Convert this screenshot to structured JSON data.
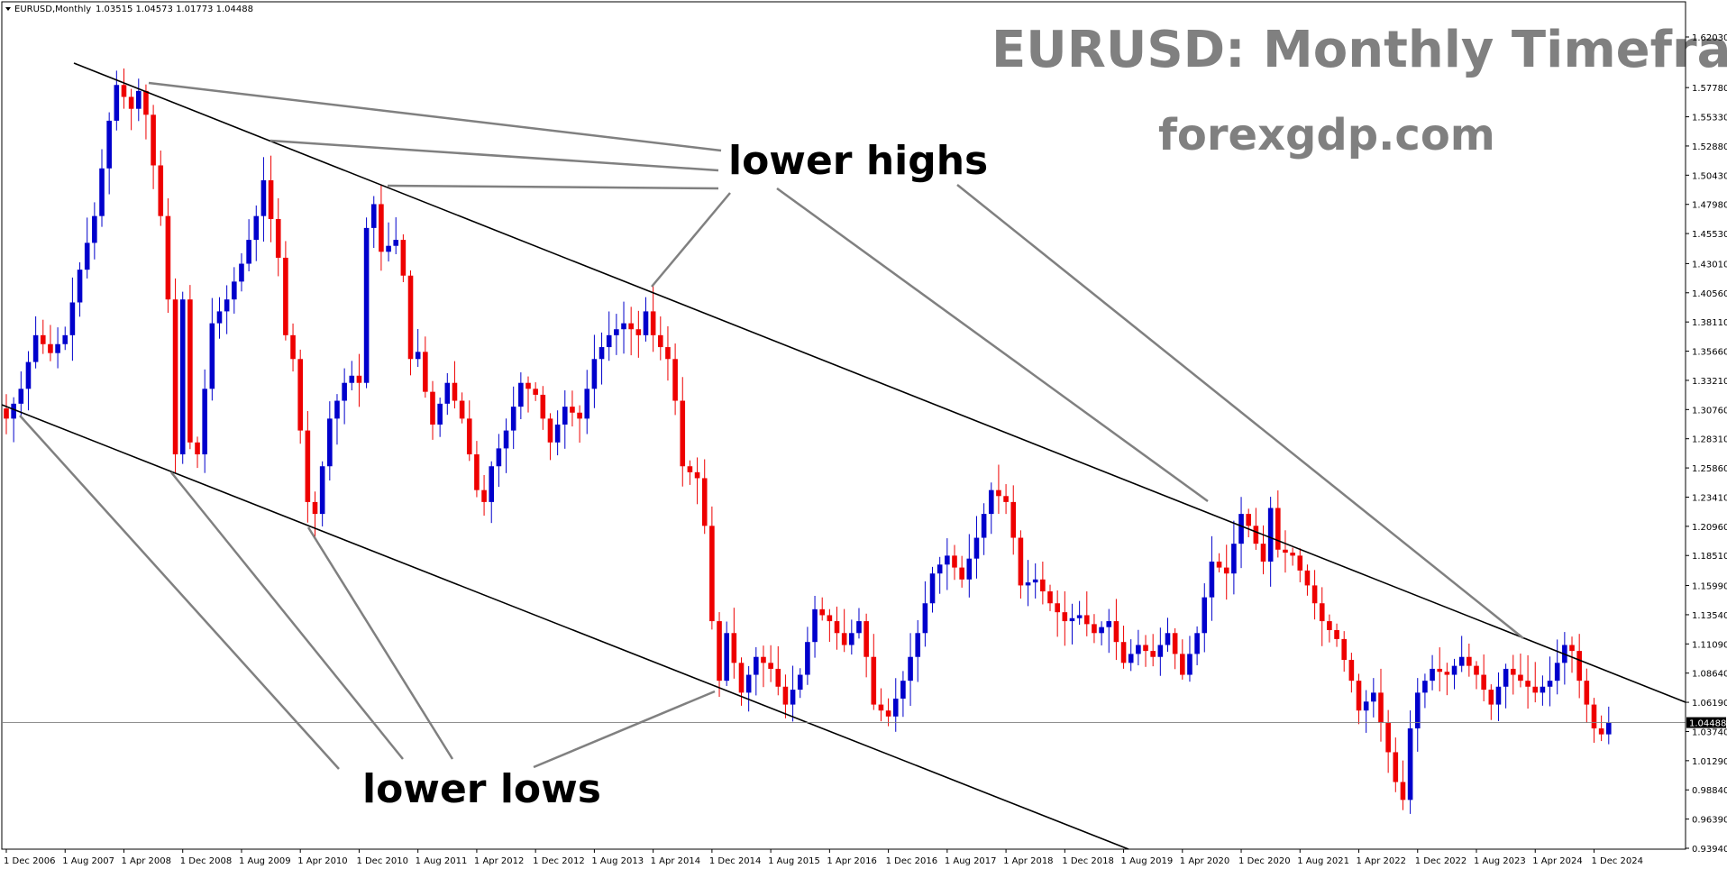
{
  "header": {
    "symbol": "EURUSD,Monthly",
    "ohlc": "1.03515 1.04573 1.01773 1.04488"
  },
  "overlay": {
    "title": "EURUSD: Monthly Timeframe",
    "site": "forexgdp.com",
    "lower_highs": "lower highs",
    "lower_lows": "lower lows"
  },
  "colors": {
    "bull": "#0000cc",
    "bear": "#ee0000",
    "trendline": "#000000",
    "pointer": "#808080",
    "overlay_text": "#808080"
  },
  "chart_data": {
    "type": "candlestick",
    "symbol": "EURUSD",
    "timeframe": "Monthly",
    "last_price": "1.04488",
    "ylim": [
      0.9394,
      1.6273
    ],
    "y_ticks": [
      "1.62030",
      "1.57780",
      "1.55330",
      "1.52880",
      "1.50430",
      "1.47980",
      "1.45530",
      "1.43010",
      "1.40560",
      "1.38110",
      "1.35660",
      "1.33210",
      "1.30760",
      "1.28310",
      "1.25860",
      "1.23410",
      "1.20960",
      "1.18510",
      "1.15990",
      "1.13540",
      "1.11090",
      "1.08640",
      "1.06190",
      "1.03740",
      "1.01290",
      "0.98840",
      "0.96390",
      "0.93940"
    ],
    "x_ticks": [
      {
        "label": "1 Dec 2006",
        "t": 0
      },
      {
        "label": "1 Aug 2007",
        "t": 8
      },
      {
        "label": "1 Apr 2008",
        "t": 16
      },
      {
        "label": "1 Dec 2008",
        "t": 24
      },
      {
        "label": "1 Aug 2009",
        "t": 32
      },
      {
        "label": "1 Apr 2010",
        "t": 40
      },
      {
        "label": "1 Dec 2010",
        "t": 48
      },
      {
        "label": "1 Aug 2011",
        "t": 56
      },
      {
        "label": "1 Apr 2012",
        "t": 64
      },
      {
        "label": "1 Dec 2012",
        "t": 72
      },
      {
        "label": "1 Aug 2013",
        "t": 80
      },
      {
        "label": "1 Apr 2014",
        "t": 88
      },
      {
        "label": "1 Dec 2014",
        "t": 96
      },
      {
        "label": "1 Aug 2015",
        "t": 104
      },
      {
        "label": "1 Apr 2016",
        "t": 112
      },
      {
        "label": "1 Dec 2016",
        "t": 120
      },
      {
        "label": "1 Aug 2017",
        "t": 128
      },
      {
        "label": "1 Apr 2018",
        "t": 136
      },
      {
        "label": "1 Dec 2018",
        "t": 144
      },
      {
        "label": "1 Aug 2019",
        "t": 152
      },
      {
        "label": "1 Apr 2020",
        "t": 160
      },
      {
        "label": "1 Dec 2020",
        "t": 168
      },
      {
        "label": "1 Aug 2021",
        "t": 176
      },
      {
        "label": "1 Apr 2022",
        "t": 184
      },
      {
        "label": "1 Dec 2022",
        "t": 192
      },
      {
        "label": "1 Aug 2023",
        "t": 200
      },
      {
        "label": "1 Apr 2024",
        "t": 208
      },
      {
        "label": "1 Dec 2024",
        "t": 216
      }
    ],
    "closes": [
      {
        "t": -2,
        "c": 1.317
      },
      {
        "t": 0,
        "c": 1.3
      },
      {
        "t": 2,
        "c": 1.325
      },
      {
        "t": 4,
        "c": 1.37
      },
      {
        "t": 6,
        "c": 1.355
      },
      {
        "t": 8,
        "c": 1.37
      },
      {
        "t": 10,
        "c": 1.425
      },
      {
        "t": 12,
        "c": 1.47
      },
      {
        "t": 14,
        "c": 1.55
      },
      {
        "t": 15,
        "c": 1.58
      },
      {
        "t": 17,
        "c": 1.56
      },
      {
        "t": 18,
        "c": 1.575
      },
      {
        "t": 19,
        "c": 1.555
      },
      {
        "t": 21,
        "c": 1.47
      },
      {
        "t": 22,
        "c": 1.4
      },
      {
        "t": 23,
        "c": 1.27
      },
      {
        "t": 24,
        "c": 1.4
      },
      {
        "t": 25,
        "c": 1.28
      },
      {
        "t": 26,
        "c": 1.27
      },
      {
        "t": 28,
        "c": 1.38
      },
      {
        "t": 30,
        "c": 1.4
      },
      {
        "t": 32,
        "c": 1.43
      },
      {
        "t": 34,
        "c": 1.47
      },
      {
        "t": 35,
        "c": 1.5
      },
      {
        "t": 37,
        "c": 1.435
      },
      {
        "t": 38,
        "c": 1.37
      },
      {
        "t": 39,
        "c": 1.35
      },
      {
        "t": 41,
        "c": 1.23
      },
      {
        "t": 42,
        "c": 1.22
      },
      {
        "t": 44,
        "c": 1.3
      },
      {
        "t": 46,
        "c": 1.33
      },
      {
        "t": 48,
        "c": 1.33
      },
      {
        "t": 49,
        "c": 1.46
      },
      {
        "t": 50,
        "c": 1.48
      },
      {
        "t": 51,
        "c": 1.44
      },
      {
        "t": 53,
        "c": 1.45
      },
      {
        "t": 54,
        "c": 1.42
      },
      {
        "t": 55,
        "c": 1.35
      },
      {
        "t": 56,
        "c": 1.35
      },
      {
        "t": 58,
        "c": 1.295
      },
      {
        "t": 60,
        "c": 1.33
      },
      {
        "t": 62,
        "c": 1.3
      },
      {
        "t": 64,
        "c": 1.24
      },
      {
        "t": 65,
        "c": 1.23
      },
      {
        "t": 66,
        "c": 1.26
      },
      {
        "t": 68,
        "c": 1.29
      },
      {
        "t": 70,
        "c": 1.33
      },
      {
        "t": 72,
        "c": 1.32
      },
      {
        "t": 74,
        "c": 1.28
      },
      {
        "t": 76,
        "c": 1.31
      },
      {
        "t": 78,
        "c": 1.3
      },
      {
        "t": 80,
        "c": 1.35
      },
      {
        "t": 82,
        "c": 1.37
      },
      {
        "t": 84,
        "c": 1.38
      },
      {
        "t": 86,
        "c": 1.37
      },
      {
        "t": 87,
        "c": 1.39
      },
      {
        "t": 88,
        "c": 1.37
      },
      {
        "t": 90,
        "c": 1.35
      },
      {
        "t": 91,
        "c": 1.315
      },
      {
        "t": 92,
        "c": 1.26
      },
      {
        "t": 94,
        "c": 1.25
      },
      {
        "t": 95,
        "c": 1.21
      },
      {
        "t": 96,
        "c": 1.13
      },
      {
        "t": 97,
        "c": 1.08
      },
      {
        "t": 98,
        "c": 1.12
      },
      {
        "t": 100,
        "c": 1.07
      },
      {
        "t": 102,
        "c": 1.1
      },
      {
        "t": 104,
        "c": 1.09
      },
      {
        "t": 106,
        "c": 1.06
      },
      {
        "t": 108,
        "c": 1.085
      },
      {
        "t": 110,
        "c": 1.14
      },
      {
        "t": 112,
        "c": 1.13
      },
      {
        "t": 114,
        "c": 1.11
      },
      {
        "t": 116,
        "c": 1.13
      },
      {
        "t": 117,
        "c": 1.1
      },
      {
        "t": 118,
        "c": 1.06
      },
      {
        "t": 120,
        "c": 1.05
      },
      {
        "t": 122,
        "c": 1.08
      },
      {
        "t": 124,
        "c": 1.12
      },
      {
        "t": 126,
        "c": 1.17
      },
      {
        "t": 128,
        "c": 1.185
      },
      {
        "t": 130,
        "c": 1.165
      },
      {
        "t": 132,
        "c": 1.2
      },
      {
        "t": 134,
        "c": 1.24
      },
      {
        "t": 136,
        "c": 1.23
      },
      {
        "t": 137,
        "c": 1.2
      },
      {
        "t": 138,
        "c": 1.16
      },
      {
        "t": 140,
        "c": 1.165
      },
      {
        "t": 142,
        "c": 1.145
      },
      {
        "t": 144,
        "c": 1.13
      },
      {
        "t": 146,
        "c": 1.135
      },
      {
        "t": 148,
        "c": 1.12
      },
      {
        "t": 150,
        "c": 1.13
      },
      {
        "t": 152,
        "c": 1.095
      },
      {
        "t": 154,
        "c": 1.11
      },
      {
        "t": 156,
        "c": 1.1
      },
      {
        "t": 158,
        "c": 1.12
      },
      {
        "t": 160,
        "c": 1.085
      },
      {
        "t": 162,
        "c": 1.12
      },
      {
        "t": 164,
        "c": 1.18
      },
      {
        "t": 166,
        "c": 1.17
      },
      {
        "t": 168,
        "c": 1.22
      },
      {
        "t": 169,
        "c": 1.21
      },
      {
        "t": 171,
        "c": 1.18
      },
      {
        "t": 172,
        "c": 1.225
      },
      {
        "t": 173,
        "c": 1.19
      },
      {
        "t": 175,
        "c": 1.185
      },
      {
        "t": 177,
        "c": 1.16
      },
      {
        "t": 179,
        "c": 1.13
      },
      {
        "t": 181,
        "c": 1.115
      },
      {
        "t": 183,
        "c": 1.08
      },
      {
        "t": 184,
        "c": 1.055
      },
      {
        "t": 186,
        "c": 1.07
      },
      {
        "t": 188,
        "c": 1.02
      },
      {
        "t": 189,
        "c": 0.995
      },
      {
        "t": 190,
        "c": 0.98
      },
      {
        "t": 191,
        "c": 1.04
      },
      {
        "t": 192,
        "c": 1.07
      },
      {
        "t": 194,
        "c": 1.09
      },
      {
        "t": 196,
        "c": 1.085
      },
      {
        "t": 198,
        "c": 1.1
      },
      {
        "t": 200,
        "c": 1.085
      },
      {
        "t": 202,
        "c": 1.06
      },
      {
        "t": 204,
        "c": 1.09
      },
      {
        "t": 206,
        "c": 1.08
      },
      {
        "t": 208,
        "c": 1.07
      },
      {
        "t": 210,
        "c": 1.08
      },
      {
        "t": 212,
        "c": 1.11
      },
      {
        "t": 213,
        "c": 1.105
      },
      {
        "t": 214,
        "c": 1.08
      },
      {
        "t": 216,
        "c": 1.04
      },
      {
        "t": 217,
        "c": 1.035
      },
      {
        "t": 218,
        "c": 1.0449
      }
    ]
  }
}
